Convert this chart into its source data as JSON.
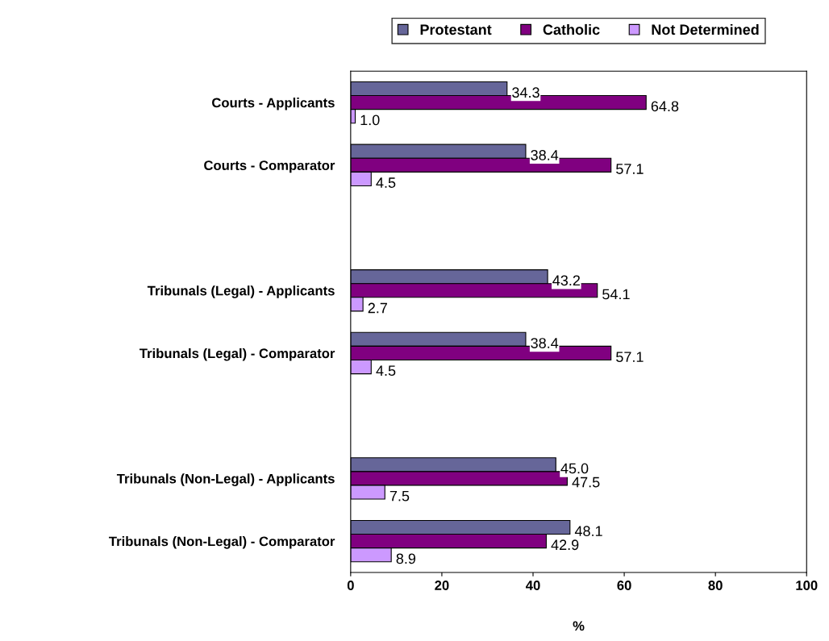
{
  "chart_data": {
    "type": "bar",
    "orientation": "horizontal",
    "xlabel": "%",
    "categories": [
      "Courts - Applicants",
      "Courts - Comparator",
      null,
      "Tribunals (Legal) - Applicants",
      "Tribunals (Legal) - Comparator",
      null,
      "Tribunals (Non-Legal) - Applicants",
      "Tribunals (Non-Legal) - Comparator"
    ],
    "series": [
      {
        "name": "Protestant",
        "color": "#666699",
        "values": [
          34.3,
          38.4,
          null,
          43.2,
          38.4,
          null,
          45.0,
          48.1
        ],
        "value_labels": [
          "34.3",
          "38.4",
          null,
          "43.2",
          "38.4",
          null,
          "45.0",
          "48.1"
        ]
      },
      {
        "name": "Catholic",
        "color": "#800080",
        "values": [
          64.8,
          57.1,
          null,
          54.1,
          57.1,
          null,
          47.5,
          42.9
        ],
        "value_labels": [
          "64.8",
          "57.1",
          null,
          "54.1",
          "57.1",
          null,
          "47.5",
          "42.9"
        ]
      },
      {
        "name": "Not Determined",
        "color": "#cc99ff",
        "values": [
          1.0,
          4.5,
          null,
          2.7,
          4.5,
          null,
          7.5,
          8.9
        ],
        "value_labels": [
          "1.0",
          "4.5",
          null,
          "2.7",
          "4.5",
          null,
          "7.5",
          "8.9"
        ]
      }
    ],
    "xlim": [
      0,
      100
    ],
    "xticks": [
      0,
      20,
      40,
      60,
      80,
      100
    ],
    "grid": false,
    "legend": "top"
  }
}
